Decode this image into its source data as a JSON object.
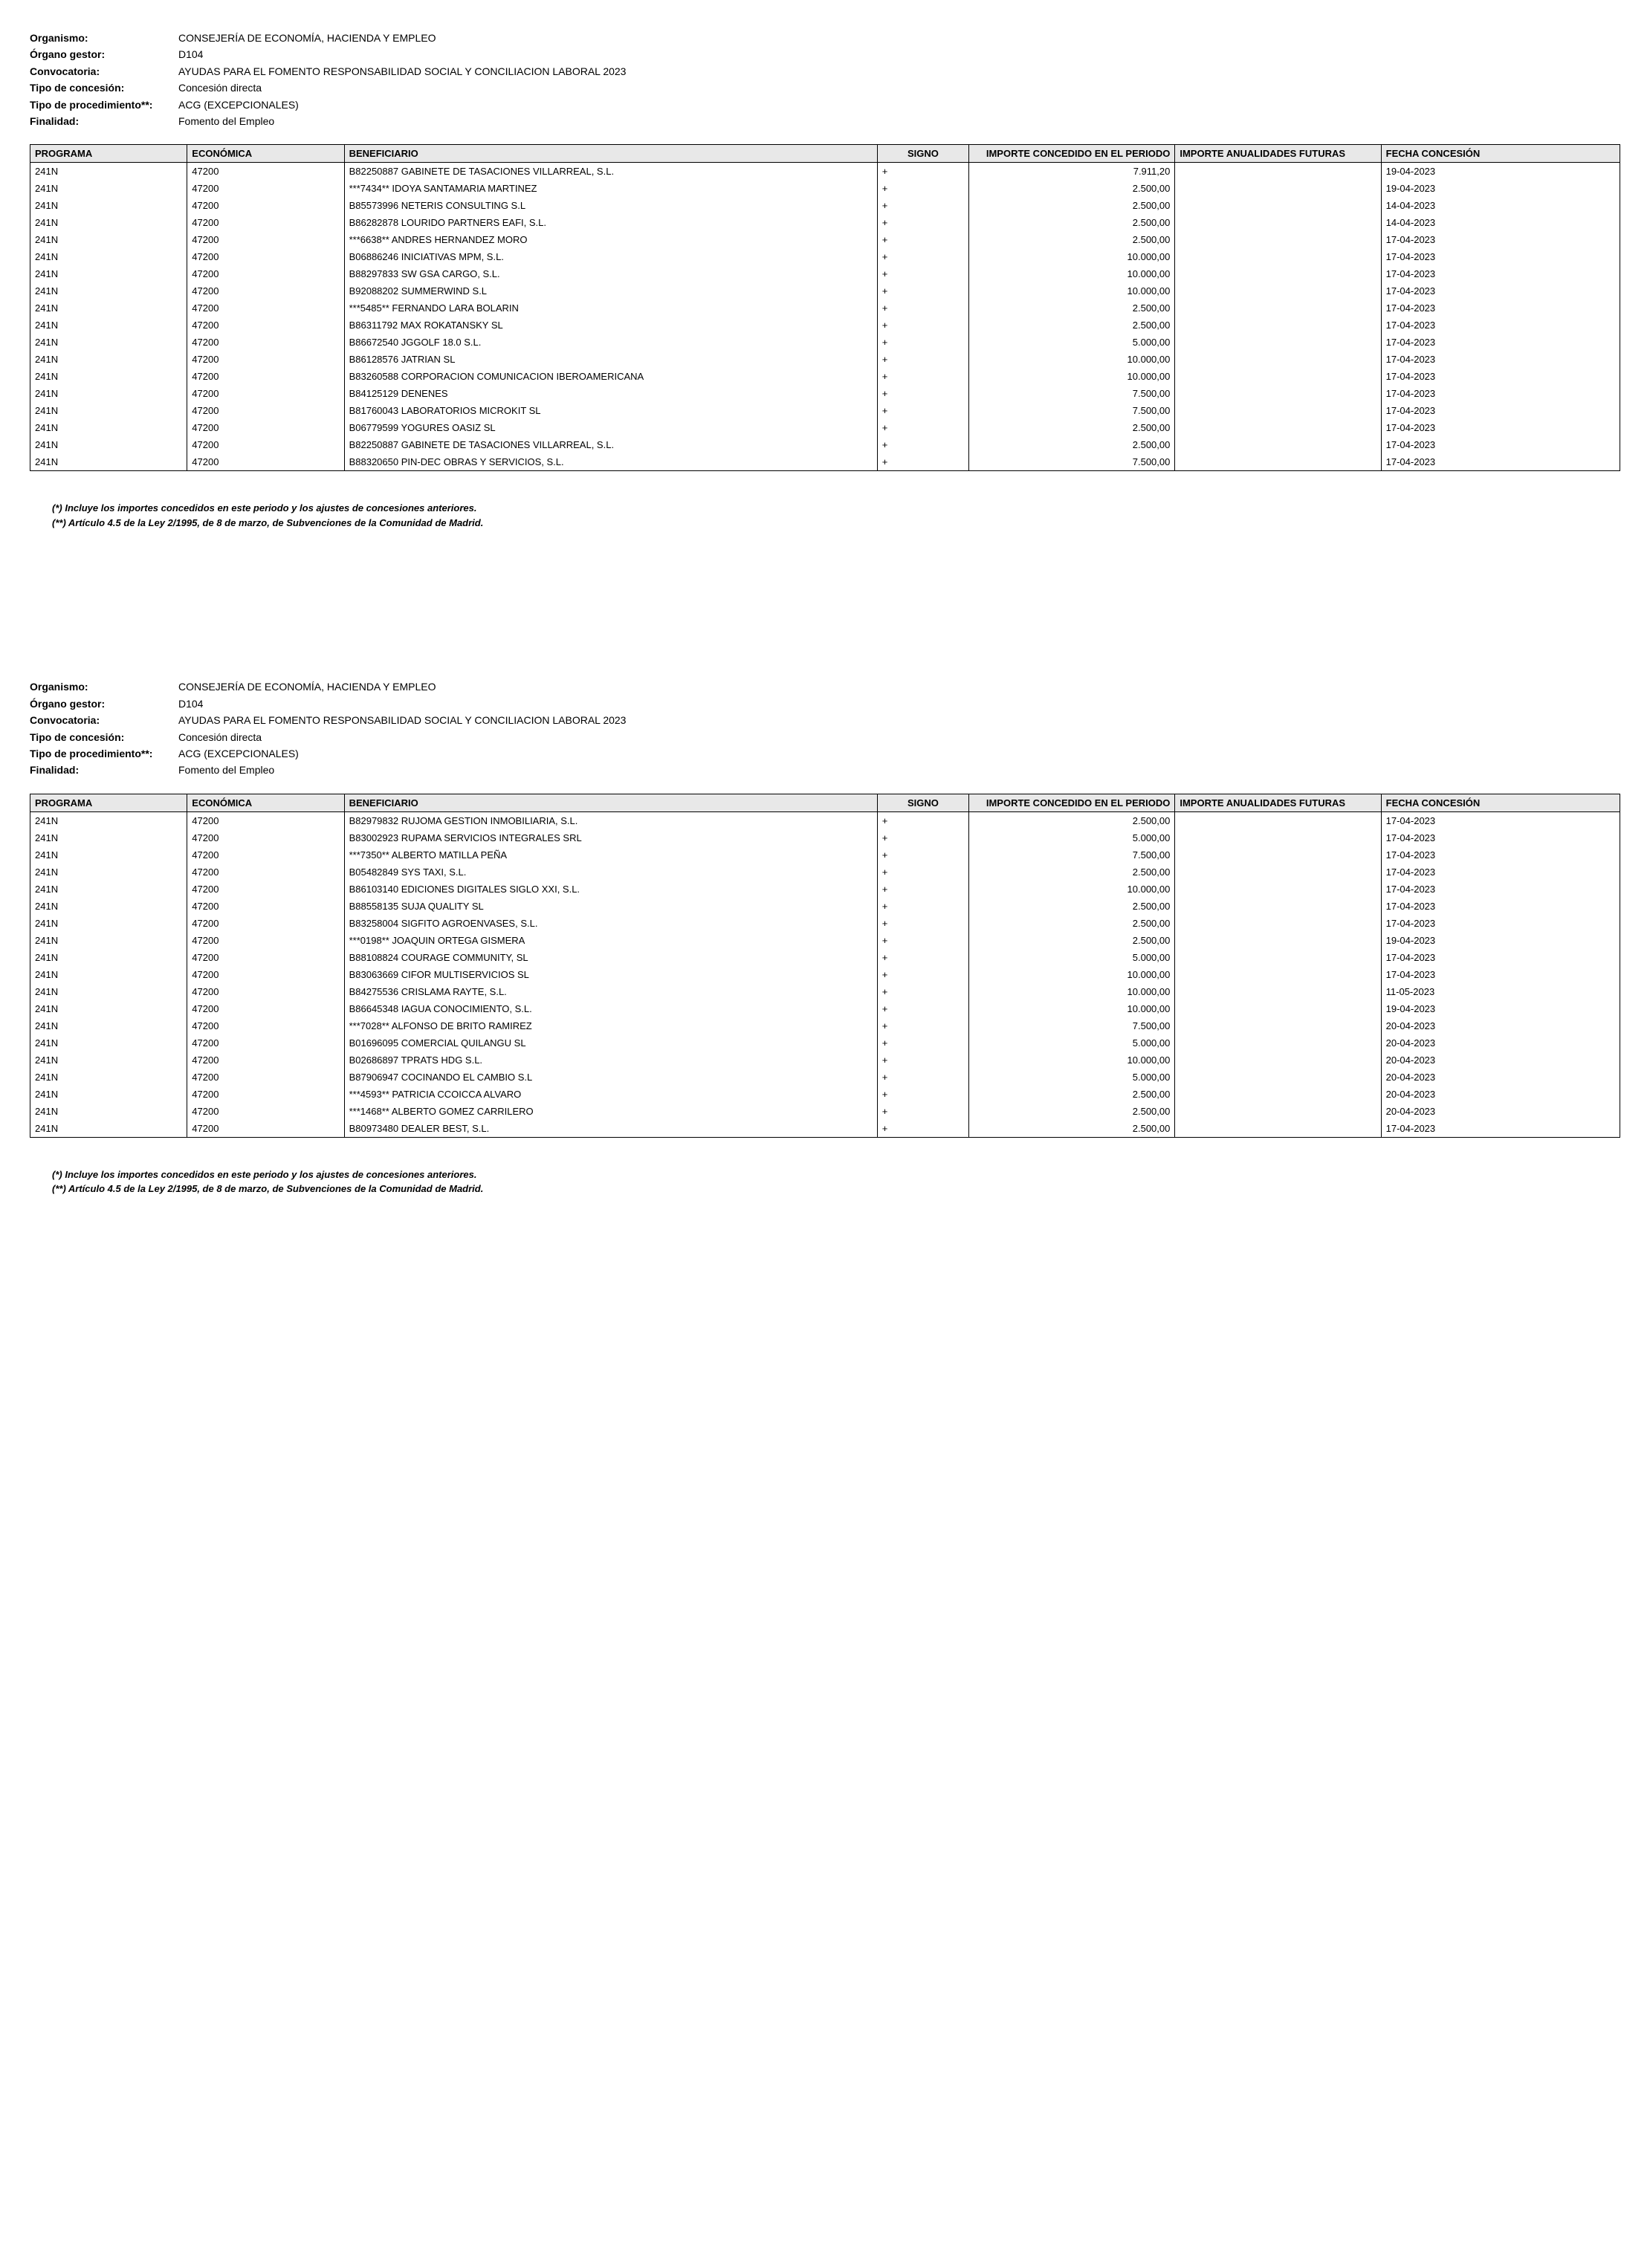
{
  "header": {
    "labels": {
      "organismo": "Organismo:",
      "organo_gestor": "Órgano gestor:",
      "convocatoria": "Convocatoria:",
      "tipo_concesion": "Tipo de concesión:",
      "tipo_procedimiento": "Tipo de procedimiento**:",
      "finalidad": "Finalidad:"
    },
    "values": {
      "organismo": "CONSEJERÍA DE ECONOMÍA, HACIENDA Y EMPLEO",
      "organo_gestor": "D104",
      "convocatoria": "AYUDAS PARA EL FOMENTO RESPONSABILIDAD SOCIAL Y CONCILIACION LABORAL 2023",
      "tipo_concesion": "Concesión directa",
      "tipo_procedimiento": "ACG (EXCEPCIONALES)",
      "finalidad": "Fomento del Empleo"
    }
  },
  "columns": {
    "programa": "PROGRAMA",
    "economica": "ECONÓMICA",
    "beneficiario": "BENEFICIARIO",
    "signo": "SIGNO",
    "importe": "IMPORTE CONCEDIDO EN EL PERIODO",
    "futuras": "IMPORTE ANUALIDADES FUTURAS",
    "fecha": "FECHA CONCESIÓN"
  },
  "footnotes": {
    "n1": "(*) Incluye los importes concedidos en este periodo y los ajustes de concesiones anteriores.",
    "n2": "(**) Artículo 4.5 de la Ley 2/1995, de 8 de marzo, de Subvenciones de la Comunidad de Madrid."
  },
  "page1_rows": [
    {
      "programa": "241N",
      "economica": "47200",
      "beneficiario": "B82250887   GABINETE DE TASACIONES VILLARREAL, S.L.",
      "signo": "+",
      "importe": "7.911,20",
      "futuras": "",
      "fecha": "19-04-2023"
    },
    {
      "programa": "241N",
      "economica": "47200",
      "beneficiario": "***7434** IDOYA SANTAMARIA MARTINEZ",
      "signo": "+",
      "importe": "2.500,00",
      "futuras": "",
      "fecha": "19-04-2023"
    },
    {
      "programa": "241N",
      "economica": "47200",
      "beneficiario": "B85573996   NETERIS CONSULTING S.L",
      "signo": "+",
      "importe": "2.500,00",
      "futuras": "",
      "fecha": "14-04-2023"
    },
    {
      "programa": "241N",
      "economica": "47200",
      "beneficiario": "B86282878   LOURIDO PARTNERS EAFI, S.L.",
      "signo": "+",
      "importe": "2.500,00",
      "futuras": "",
      "fecha": "14-04-2023"
    },
    {
      "programa": "241N",
      "economica": "47200",
      "beneficiario": "***6638** ANDRES HERNANDEZ MORO",
      "signo": "+",
      "importe": "2.500,00",
      "futuras": "",
      "fecha": "17-04-2023"
    },
    {
      "programa": "241N",
      "economica": "47200",
      "beneficiario": "B06886246   INICIATIVAS MPM, S.L.",
      "signo": "+",
      "importe": "10.000,00",
      "futuras": "",
      "fecha": "17-04-2023"
    },
    {
      "programa": "241N",
      "economica": "47200",
      "beneficiario": "B88297833   SW GSA CARGO, S.L.",
      "signo": "+",
      "importe": "10.000,00",
      "futuras": "",
      "fecha": "17-04-2023"
    },
    {
      "programa": "241N",
      "economica": "47200",
      "beneficiario": "B92088202   SUMMERWIND S.L",
      "signo": "+",
      "importe": "10.000,00",
      "futuras": "",
      "fecha": "17-04-2023"
    },
    {
      "programa": "241N",
      "economica": "47200",
      "beneficiario": "***5485** FERNANDO LARA BOLARIN",
      "signo": "+",
      "importe": "2.500,00",
      "futuras": "",
      "fecha": "17-04-2023"
    },
    {
      "programa": "241N",
      "economica": "47200",
      "beneficiario": "B86311792   MAX ROKATANSKY SL",
      "signo": "+",
      "importe": "2.500,00",
      "futuras": "",
      "fecha": "17-04-2023"
    },
    {
      "programa": "241N",
      "economica": "47200",
      "beneficiario": "B86672540   JGGOLF 18.0 S.L.",
      "signo": "+",
      "importe": "5.000,00",
      "futuras": "",
      "fecha": "17-04-2023"
    },
    {
      "programa": "241N",
      "economica": "47200",
      "beneficiario": "B86128576   JATRIAN SL",
      "signo": "+",
      "importe": "10.000,00",
      "futuras": "",
      "fecha": "17-04-2023"
    },
    {
      "programa": "241N",
      "economica": "47200",
      "beneficiario": "B83260588   CORPORACION COMUNICACION IBEROAMERICANA",
      "signo": "+",
      "importe": "10.000,00",
      "futuras": "",
      "fecha": "17-04-2023"
    },
    {
      "programa": "241N",
      "economica": "47200",
      "beneficiario": "B84125129   DENENES",
      "signo": "+",
      "importe": "7.500,00",
      "futuras": "",
      "fecha": "17-04-2023"
    },
    {
      "programa": "241N",
      "economica": "47200",
      "beneficiario": "B81760043   LABORATORIOS MICROKIT SL",
      "signo": "+",
      "importe": "7.500,00",
      "futuras": "",
      "fecha": "17-04-2023"
    },
    {
      "programa": "241N",
      "economica": "47200",
      "beneficiario": "B06779599   YOGURES OASIZ SL",
      "signo": "+",
      "importe": "2.500,00",
      "futuras": "",
      "fecha": "17-04-2023"
    },
    {
      "programa": "241N",
      "economica": "47200",
      "beneficiario": "B82250887   GABINETE DE TASACIONES VILLARREAL, S.L.",
      "signo": "+",
      "importe": "2.500,00",
      "futuras": "",
      "fecha": "17-04-2023"
    },
    {
      "programa": "241N",
      "economica": "47200",
      "beneficiario": "B88320650   PIN-DEC OBRAS Y SERVICIOS, S.L.",
      "signo": "+",
      "importe": "7.500,00",
      "futuras": "",
      "fecha": "17-04-2023"
    }
  ],
  "page2_rows": [
    {
      "programa": "241N",
      "economica": "47200",
      "beneficiario": "B82979832   RUJOMA GESTION INMOBILIARIA, S.L.",
      "signo": "+",
      "importe": "2.500,00",
      "futuras": "",
      "fecha": "17-04-2023"
    },
    {
      "programa": "241N",
      "economica": "47200",
      "beneficiario": "B83002923   RUPAMA SERVICIOS INTEGRALES  SRL",
      "signo": "+",
      "importe": "5.000,00",
      "futuras": "",
      "fecha": "17-04-2023"
    },
    {
      "programa": "241N",
      "economica": "47200",
      "beneficiario": "***7350** ALBERTO MATILLA PEÑA",
      "signo": "+",
      "importe": "7.500,00",
      "futuras": "",
      "fecha": "17-04-2023"
    },
    {
      "programa": "241N",
      "economica": "47200",
      "beneficiario": "B05482849   SYS TAXI, S.L.",
      "signo": "+",
      "importe": "2.500,00",
      "futuras": "",
      "fecha": "17-04-2023"
    },
    {
      "programa": "241N",
      "economica": "47200",
      "beneficiario": "B86103140   EDICIONES DIGITALES SIGLO XXI, S.L.",
      "signo": "+",
      "importe": "10.000,00",
      "futuras": "",
      "fecha": "17-04-2023"
    },
    {
      "programa": "241N",
      "economica": "47200",
      "beneficiario": "B88558135   SUJA QUALITY SL",
      "signo": "+",
      "importe": "2.500,00",
      "futuras": "",
      "fecha": "17-04-2023"
    },
    {
      "programa": "241N",
      "economica": "47200",
      "beneficiario": "B83258004   SIGFITO AGROENVASES, S.L.",
      "signo": "+",
      "importe": "2.500,00",
      "futuras": "",
      "fecha": "17-04-2023"
    },
    {
      "programa": "241N",
      "economica": "47200",
      "beneficiario": "***0198** JOAQUIN ORTEGA GISMERA",
      "signo": "+",
      "importe": "2.500,00",
      "futuras": "",
      "fecha": "19-04-2023"
    },
    {
      "programa": "241N",
      "economica": "47200",
      "beneficiario": "B88108824   COURAGE COMMUNITY, SL",
      "signo": "+",
      "importe": "5.000,00",
      "futuras": "",
      "fecha": "17-04-2023"
    },
    {
      "programa": "241N",
      "economica": "47200",
      "beneficiario": "B83063669   CIFOR MULTISERVICIOS SL",
      "signo": "+",
      "importe": "10.000,00",
      "futuras": "",
      "fecha": "17-04-2023"
    },
    {
      "programa": "241N",
      "economica": "47200",
      "beneficiario": "B84275536   CRISLAMA RAYTE, S.L.",
      "signo": "+",
      "importe": "10.000,00",
      "futuras": "",
      "fecha": "11-05-2023"
    },
    {
      "programa": "241N",
      "economica": "47200",
      "beneficiario": "B86645348   IAGUA CONOCIMIENTO, S.L.",
      "signo": "+",
      "importe": "10.000,00",
      "futuras": "",
      "fecha": "19-04-2023"
    },
    {
      "programa": "241N",
      "economica": "47200",
      "beneficiario": "***7028** ALFONSO DE BRITO RAMIREZ",
      "signo": "+",
      "importe": "7.500,00",
      "futuras": "",
      "fecha": "20-04-2023"
    },
    {
      "programa": "241N",
      "economica": "47200",
      "beneficiario": "B01696095   COMERCIAL QUILANGU SL",
      "signo": "+",
      "importe": "5.000,00",
      "futuras": "",
      "fecha": "20-04-2023"
    },
    {
      "programa": "241N",
      "economica": "47200",
      "beneficiario": "B02686897   TPRATS HDG S.L.",
      "signo": "+",
      "importe": "10.000,00",
      "futuras": "",
      "fecha": "20-04-2023"
    },
    {
      "programa": "241N",
      "economica": "47200",
      "beneficiario": "B87906947   COCINANDO EL CAMBIO S.L",
      "signo": "+",
      "importe": "5.000,00",
      "futuras": "",
      "fecha": "20-04-2023"
    },
    {
      "programa": "241N",
      "economica": "47200",
      "beneficiario": "***4593** PATRICIA CCOICCA ALVARO",
      "signo": "+",
      "importe": "2.500,00",
      "futuras": "",
      "fecha": "20-04-2023"
    },
    {
      "programa": "241N",
      "economica": "47200",
      "beneficiario": "***1468** ALBERTO GOMEZ CARRILERO",
      "signo": "+",
      "importe": "2.500,00",
      "futuras": "",
      "fecha": "20-04-2023"
    },
    {
      "programa": "241N",
      "economica": "47200",
      "beneficiario": "B80973480   DEALER BEST, S.L.",
      "signo": "+",
      "importe": "2.500,00",
      "futuras": "",
      "fecha": "17-04-2023"
    }
  ]
}
